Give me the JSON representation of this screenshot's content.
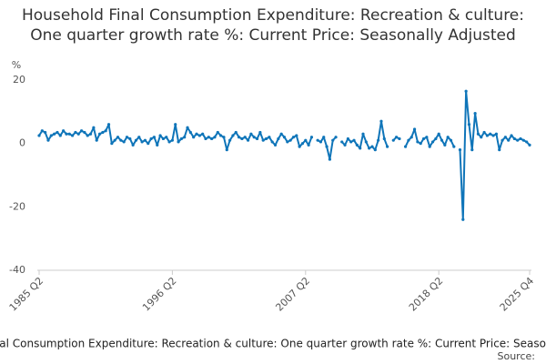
{
  "chart_data": {
    "type": "line",
    "title": "Household Final Consumption Expenditure: Recreation & culture: One quarter growth rate %: Current Price: Seasonally Adjusted",
    "y_label": "%",
    "source": "Source:",
    "categories": [
      "1985 Q2",
      null,
      null,
      null,
      null,
      null,
      null,
      null,
      null,
      null,
      null,
      null,
      null,
      null,
      null,
      null,
      null,
      null,
      null,
      null,
      null,
      null,
      null,
      null,
      null,
      null,
      null,
      null,
      null,
      null,
      null,
      null,
      null,
      null,
      null,
      null,
      null,
      null,
      null,
      null,
      null,
      null,
      null,
      null,
      "1996 Q2",
      null,
      null,
      null,
      null,
      null,
      null,
      null,
      null,
      null,
      null,
      null,
      null,
      null,
      null,
      null,
      null,
      null,
      null,
      null,
      null,
      null,
      null,
      null,
      null,
      null,
      null,
      null,
      null,
      null,
      null,
      null,
      null,
      null,
      null,
      null,
      null,
      null,
      null,
      null,
      null,
      null,
      null,
      null,
      "2007 Q2",
      null,
      null,
      null,
      null,
      null,
      null,
      null,
      null,
      null,
      null,
      null,
      null,
      null,
      null,
      null,
      null,
      null,
      null,
      null,
      null,
      null,
      null,
      null,
      null,
      null,
      null,
      null,
      null,
      null,
      null,
      null,
      null,
      null,
      null,
      null,
      null,
      null,
      null,
      null,
      null,
      null,
      null,
      null,
      "2018 Q2",
      null,
      null,
      null,
      null,
      null,
      null,
      null,
      null,
      null,
      null,
      null,
      null,
      null,
      null,
      null,
      null,
      null,
      null,
      null,
      null,
      null,
      null,
      null,
      null,
      null,
      null,
      null,
      null,
      null,
      "2025 Q4"
    ],
    "series": [
      {
        "name": "Household Final Consumption Expenditure: Recreation & culture: One quarter growth rate %: Current Price: Seasonally Adjusted",
        "color": "#0f75b9",
        "values": [
          2.5,
          4,
          3.5,
          1,
          2.5,
          3,
          3.5,
          2.5,
          4,
          3,
          3,
          2.5,
          3.5,
          3,
          4,
          3.5,
          2.5,
          3,
          5,
          1,
          3,
          3.5,
          4,
          6,
          0,
          1,
          2,
          1,
          0.5,
          2,
          1.5,
          -0.5,
          1,
          2,
          0.5,
          1,
          0,
          1.5,
          2,
          -0.5,
          2.5,
          1.5,
          2,
          0.5,
          1,
          6,
          0.5,
          1.5,
          2,
          5,
          3.5,
          2,
          3,
          2.5,
          3,
          1.5,
          2,
          1.5,
          2,
          3.5,
          2.5,
          2,
          -2,
          1,
          2.5,
          3.5,
          2,
          1.5,
          2,
          1,
          3,
          2,
          1.5,
          3.5,
          1,
          1.5,
          2,
          0.5,
          -0.5,
          1.5,
          3,
          2,
          0.5,
          1,
          2,
          2.5,
          -1,
          0,
          1,
          -0.5,
          2,
          null,
          1,
          0.5,
          2,
          -1,
          -5,
          1,
          2,
          null,
          0.5,
          -0.5,
          1.5,
          0.5,
          1,
          -0.5,
          -1.5,
          3,
          0.5,
          -1.5,
          -1,
          -2,
          1,
          7,
          1.5,
          -1,
          null,
          1,
          2,
          1.5,
          null,
          -1,
          1,
          2,
          4.5,
          0.5,
          0,
          1.5,
          2,
          -1,
          0.5,
          1.5,
          3,
          1,
          -0.5,
          2,
          1,
          -1,
          null,
          -2,
          -24,
          16.5,
          6,
          -2,
          9.5,
          3,
          2,
          3.5,
          2.5,
          3,
          2.5,
          3,
          -2,
          1,
          2,
          1,
          2.5,
          1.5,
          1,
          1.5,
          1,
          0.5,
          -0.5
        ]
      }
    ],
    "ylim": [
      -40,
      20
    ],
    "yticks": [
      -40,
      -20,
      0,
      20
    ],
    "grid": false
  }
}
